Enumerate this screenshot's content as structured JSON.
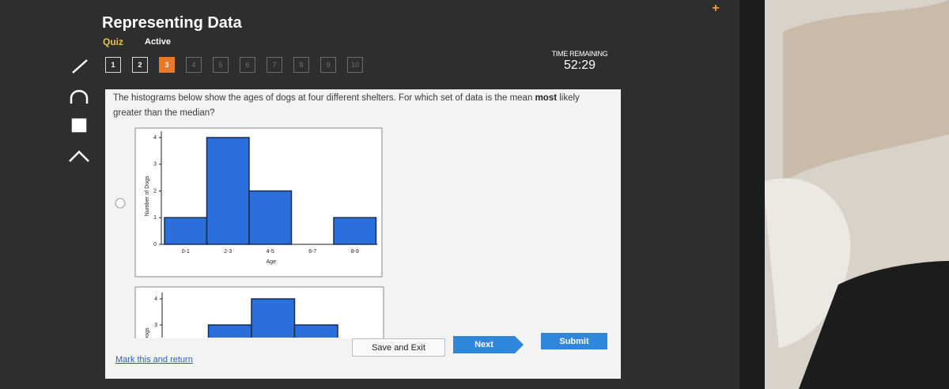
{
  "header": {
    "title": "Representing Data",
    "mode": "Quiz",
    "status": "Active"
  },
  "question_nav": [
    "1",
    "2",
    "3",
    "4",
    "5",
    "6",
    "7",
    "8",
    "9",
    "10"
  ],
  "timer": {
    "label": "TIME REMAINING",
    "value": "52:29"
  },
  "question": {
    "text_before": "The histograms below show the ages of dogs at four different shelters. For which set of data is the mean",
    "emphasis": "most",
    "text_after": "likely greater than the median?"
  },
  "chart_data": [
    {
      "type": "bar",
      "categories": [
        "0-1",
        "2-3",
        "4-5",
        "6-7",
        "8-9"
      ],
      "values": [
        1,
        4,
        2,
        0,
        1
      ],
      "color": "#2b6fdc",
      "x_label": "Age",
      "y_label": "Number of Dogs",
      "ylim": [
        0,
        4
      ],
      "yticks": [
        0,
        1,
        2,
        3,
        4
      ]
    },
    {
      "type": "bar",
      "categories": [
        null,
        null,
        null,
        null,
        null
      ],
      "values": [
        null,
        3,
        4,
        3,
        null
      ],
      "color": "#2b6fdc",
      "y_label": "Number of Dogs",
      "ylim": [
        0,
        4
      ],
      "yticks": [
        3,
        4
      ]
    }
  ],
  "footer": {
    "mark": "Mark this and return",
    "save": "Save and Exit",
    "next": "Next",
    "submit": "Submit"
  }
}
